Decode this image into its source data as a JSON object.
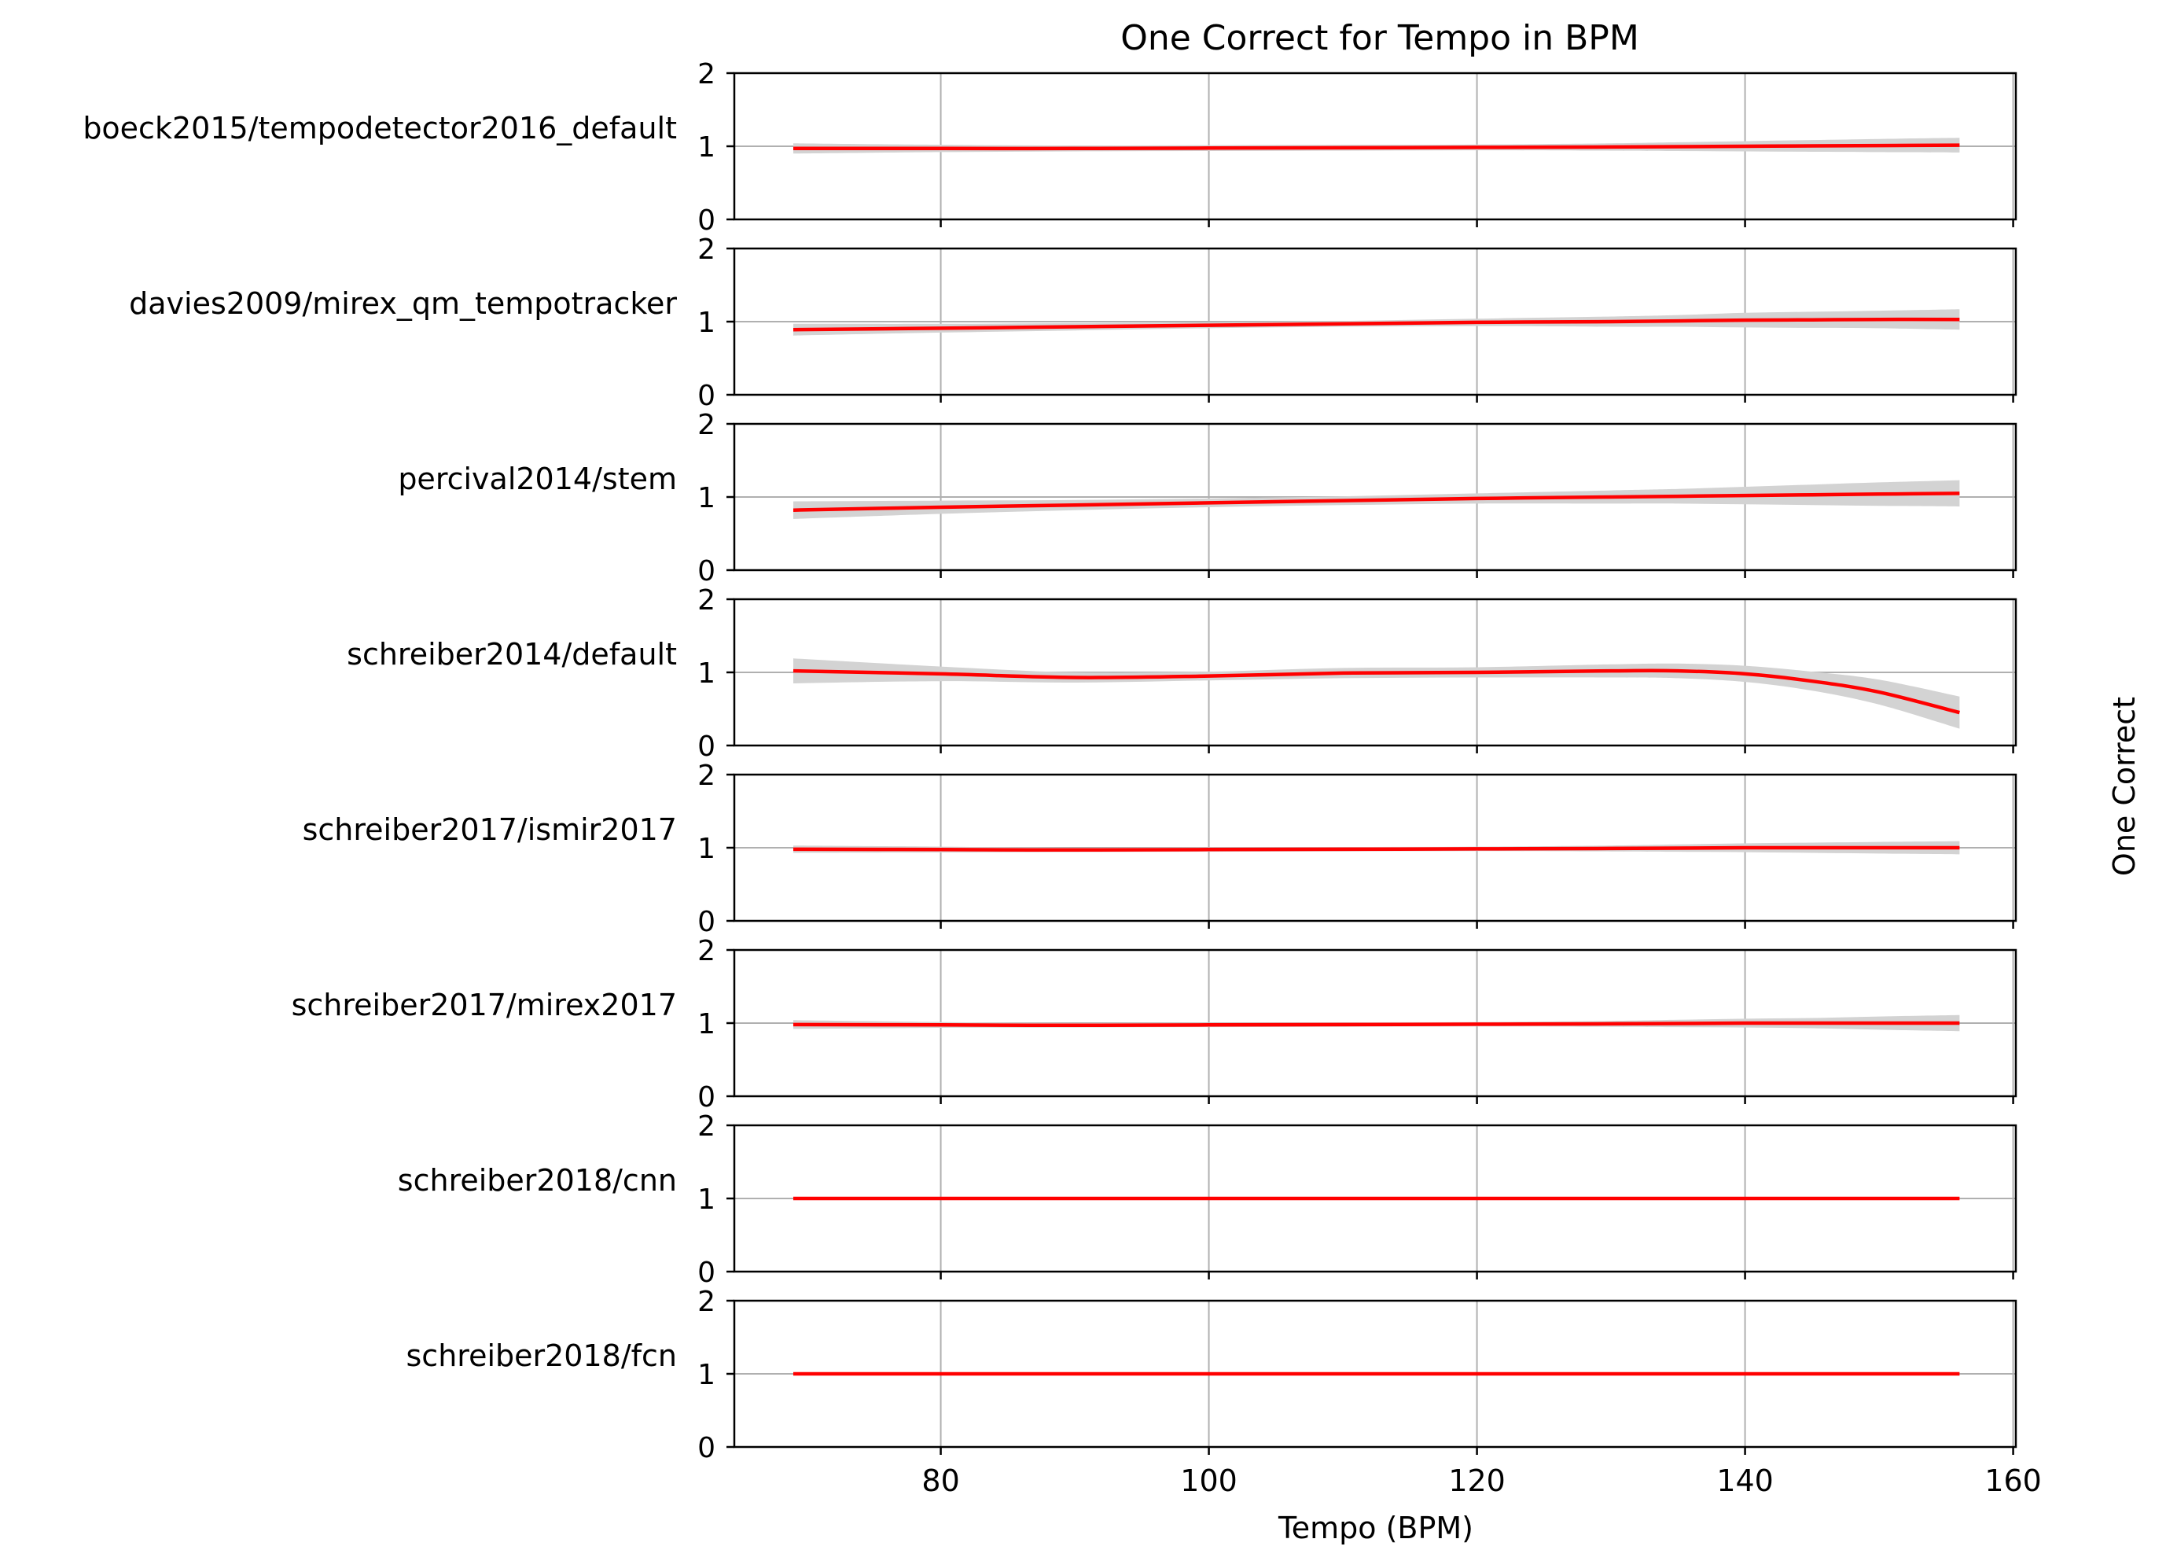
{
  "chart_data": {
    "type": "line",
    "title": "One Correct for Tempo in BPM",
    "xlabel": "Tempo (BPM)",
    "ylabel": "One Correct",
    "xlim": [
      64.6,
      160.2
    ],
    "ylim": [
      0,
      2
    ],
    "x_ticks": [
      80,
      100,
      120,
      140,
      160
    ],
    "y_ticks": [
      0,
      1,
      2
    ],
    "grid": true,
    "colors": {
      "line": "#ff0000",
      "band": "#d3d3d3",
      "grid": "#b0b0b0",
      "axes": "#000000"
    },
    "x": [
      69,
      80,
      90,
      100,
      110,
      120,
      130,
      135,
      140,
      145,
      150,
      156
    ],
    "panels": [
      {
        "label": "boeck2015/tempodetector2016_default",
        "values": [
          0.97,
          0.97,
          0.97,
          0.975,
          0.98,
          0.985,
          0.99,
          0.995,
          1.0,
          1.005,
          1.01,
          1.015
        ],
        "band": [
          0.07,
          0.05,
          0.04,
          0.04,
          0.04,
          0.04,
          0.05,
          0.06,
          0.07,
          0.08,
          0.09,
          0.1
        ]
      },
      {
        "label": "davies2009/mirex_qm_tempotracker",
        "values": [
          0.89,
          0.91,
          0.93,
          0.95,
          0.97,
          0.99,
          1.0,
          1.01,
          1.02,
          1.025,
          1.03,
          1.03
        ],
        "band": [
          0.08,
          0.06,
          0.05,
          0.04,
          0.04,
          0.05,
          0.07,
          0.08,
          0.1,
          0.11,
          0.12,
          0.14
        ]
      },
      {
        "label": "percival2014/stem",
        "values": [
          0.82,
          0.86,
          0.89,
          0.92,
          0.95,
          0.98,
          1.0,
          1.01,
          1.02,
          1.03,
          1.04,
          1.05
        ],
        "band": [
          0.12,
          0.09,
          0.07,
          0.06,
          0.06,
          0.07,
          0.09,
          0.1,
          0.12,
          0.14,
          0.16,
          0.18
        ]
      },
      {
        "label": "schreiber2014/default",
        "values": [
          1.02,
          0.98,
          0.93,
          0.95,
          0.99,
          1.0,
          1.02,
          1.02,
          0.98,
          0.88,
          0.73,
          0.45
        ],
        "band": [
          0.17,
          0.1,
          0.07,
          0.06,
          0.07,
          0.07,
          0.09,
          0.1,
          0.11,
          0.13,
          0.17,
          0.22
        ]
      },
      {
        "label": "schreiber2017/ismir2017",
        "values": [
          0.98,
          0.975,
          0.97,
          0.975,
          0.98,
          0.985,
          0.99,
          0.995,
          1.0,
          1.0,
          1.0,
          1.0
        ],
        "band": [
          0.05,
          0.04,
          0.03,
          0.03,
          0.03,
          0.03,
          0.04,
          0.05,
          0.06,
          0.07,
          0.08,
          0.09
        ]
      },
      {
        "label": "schreiber2017/mirex2017",
        "values": [
          0.98,
          0.975,
          0.97,
          0.975,
          0.98,
          0.985,
          0.99,
          0.995,
          1.0,
          1.0,
          1.0,
          1.0
        ],
        "band": [
          0.06,
          0.04,
          0.03,
          0.03,
          0.03,
          0.03,
          0.04,
          0.05,
          0.06,
          0.07,
          0.09,
          0.11
        ]
      },
      {
        "label": "schreiber2018/cnn",
        "values": [
          1,
          1,
          1,
          1,
          1,
          1,
          1,
          1,
          1,
          1,
          1,
          1
        ],
        "band": [
          0,
          0,
          0,
          0,
          0,
          0,
          0,
          0,
          0,
          0,
          0,
          0
        ]
      },
      {
        "label": "schreiber2018/fcn",
        "values": [
          1,
          1,
          1,
          1,
          1,
          1,
          1,
          1,
          1,
          1,
          1,
          1
        ],
        "band": [
          0,
          0,
          0,
          0,
          0,
          0,
          0,
          0,
          0,
          0,
          0,
          0
        ]
      }
    ]
  }
}
